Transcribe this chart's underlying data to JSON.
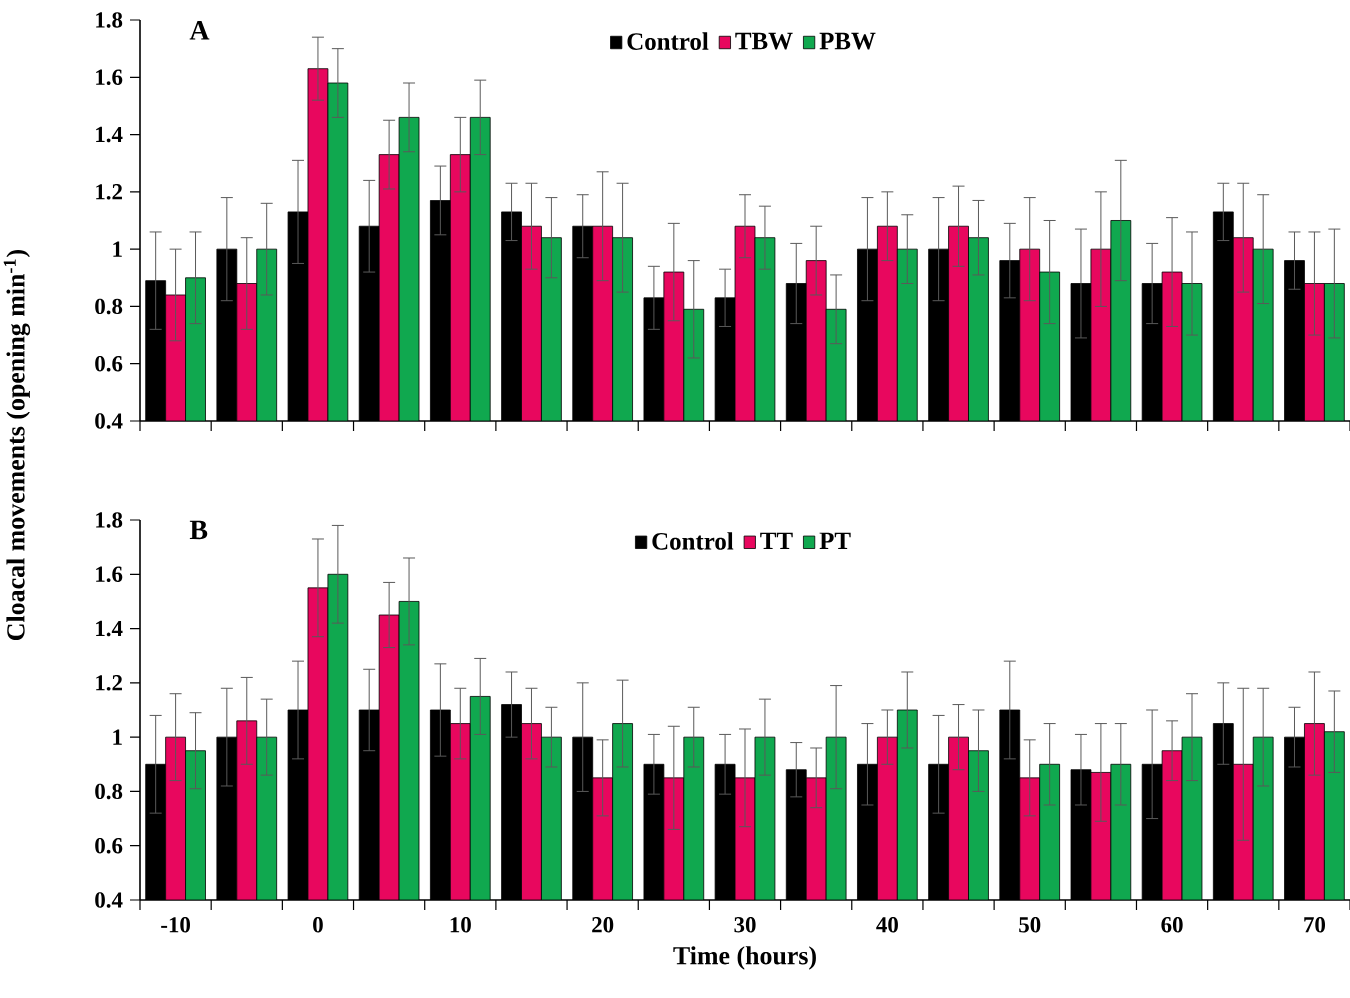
{
  "chart_data": [
    {
      "type": "bar",
      "title": "A",
      "ylabel": "Cloacal movements (opening min$^{-1}$)",
      "categories": [
        "-10",
        null,
        "0",
        null,
        "10",
        null,
        "20",
        null,
        "30",
        null,
        "40",
        null,
        "50",
        null,
        "60",
        null,
        "70"
      ],
      "series": [
        {
          "name": "Control",
          "color": "#000000",
          "values": [
            0.89,
            1.0,
            1.13,
            1.08,
            1.17,
            1.13,
            1.08,
            0.83,
            0.83,
            0.88,
            1.0,
            1.0,
            0.96,
            0.88,
            0.88,
            1.13,
            0.96
          ],
          "errors": [
            0.17,
            0.18,
            0.18,
            0.16,
            0.12,
            0.1,
            0.11,
            0.11,
            0.1,
            0.14,
            0.18,
            0.18,
            0.13,
            0.19,
            0.14,
            0.1,
            0.1
          ]
        },
        {
          "name": "TBW",
          "color": "#e8075e",
          "values": [
            0.84,
            0.88,
            1.63,
            1.33,
            1.33,
            1.08,
            1.08,
            0.92,
            1.08,
            0.96,
            1.08,
            1.08,
            1.0,
            1.0,
            0.92,
            1.04,
            0.88
          ],
          "errors": [
            0.16,
            0.16,
            0.11,
            0.12,
            0.13,
            0.15,
            0.19,
            0.17,
            0.11,
            0.12,
            0.12,
            0.14,
            0.18,
            0.2,
            0.19,
            0.19,
            0.18
          ]
        },
        {
          "name": "PBW",
          "color": "#10a84f",
          "values": [
            0.9,
            1.0,
            1.58,
            1.46,
            1.46,
            1.04,
            1.04,
            0.79,
            1.04,
            0.79,
            1.0,
            1.04,
            0.92,
            1.1,
            0.88,
            1.0,
            0.88
          ],
          "errors": [
            0.16,
            0.16,
            0.12,
            0.12,
            0.13,
            0.14,
            0.19,
            0.17,
            0.11,
            0.12,
            0.12,
            0.13,
            0.18,
            0.21,
            0.18,
            0.19,
            0.19
          ]
        }
      ],
      "ylim": [
        0.4,
        1.8
      ],
      "yticks": [
        0.4,
        0.6,
        0.8,
        1,
        1.2,
        1.4,
        1.6,
        1.8
      ],
      "legend": "top",
      "tick_labels": "y",
      "grid": false
    },
    {
      "type": "bar",
      "title": "B",
      "xlabel": "Time (hours)",
      "categories": [
        "-10",
        null,
        "0",
        null,
        "10",
        null,
        "20",
        null,
        "30",
        null,
        "40",
        null,
        "50",
        null,
        "60",
        null,
        "70"
      ],
      "series": [
        {
          "name": "Control",
          "color": "#000000",
          "values": [
            0.9,
            1.0,
            1.1,
            1.1,
            1.1,
            1.12,
            1.0,
            0.9,
            0.9,
            0.88,
            0.9,
            0.9,
            1.1,
            0.88,
            0.9,
            1.05,
            1.0
          ],
          "errors": [
            0.18,
            0.18,
            0.18,
            0.15,
            0.17,
            0.12,
            0.2,
            0.11,
            0.11,
            0.1,
            0.15,
            0.18,
            0.18,
            0.13,
            0.2,
            0.15,
            0.11
          ]
        },
        {
          "name": "TT",
          "color": "#e8075e",
          "values": [
            1.0,
            1.06,
            1.55,
            1.45,
            1.05,
            1.05,
            0.85,
            0.85,
            0.85,
            0.85,
            1.0,
            1.0,
            0.85,
            0.87,
            0.95,
            0.9,
            1.05
          ],
          "errors": [
            0.16,
            0.16,
            0.18,
            0.12,
            0.13,
            0.13,
            0.14,
            0.19,
            0.18,
            0.11,
            0.1,
            0.12,
            0.14,
            0.18,
            0.11,
            0.28,
            0.19
          ]
        },
        {
          "name": "PT",
          "color": "#10a84f",
          "values": [
            0.95,
            1.0,
            1.6,
            1.5,
            1.15,
            1.0,
            1.05,
            1.0,
            1.0,
            1.0,
            1.1,
            0.95,
            0.9,
            0.9,
            1.0,
            1.0,
            1.02
          ],
          "errors": [
            0.14,
            0.14,
            0.18,
            0.16,
            0.14,
            0.11,
            0.16,
            0.11,
            0.14,
            0.19,
            0.14,
            0.15,
            0.15,
            0.15,
            0.16,
            0.18,
            0.15
          ]
        }
      ],
      "ylim": [
        0.4,
        1.8
      ],
      "yticks": [
        0.4,
        0.6,
        0.8,
        1,
        1.2,
        1.4,
        1.6,
        1.8
      ],
      "legend": "top",
      "grid": false
    }
  ]
}
